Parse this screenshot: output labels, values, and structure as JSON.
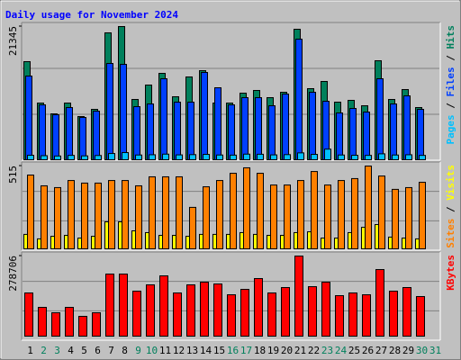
{
  "title": "Daily usage for November 2024",
  "legend_separator": "/",
  "chart_data": [
    {
      "type": "bar",
      "ylim": [
        0,
        21345
      ],
      "yticks": [
        21345
      ],
      "series": [
        {
          "name": "Hits",
          "color": "#00805c",
          "values": [
            15720,
            9085,
            7355,
            9085,
            6922,
            8076,
            20334,
            21345,
            9662,
            11970,
            13845,
            10095,
            13268,
            14277,
            9085,
            9085,
            10672,
            11105,
            9951,
            10817,
            20912,
            11393,
            12547,
            9230,
            9518,
            8653,
            15864,
            9662,
            11249,
            8365,
            null
          ]
        },
        {
          "name": "Files",
          "color": "#0040ff",
          "values": [
            13412,
            8797,
            7211,
            8365,
            6778,
            7788,
            15431,
            15287,
            8509,
            8941,
            12979,
            9230,
            9230,
            13989,
            11537,
            8797,
            9951,
            9951,
            8653,
            10528,
            19325,
            10816,
            9374,
            7499,
            8220,
            7643,
            12979,
            8941,
            10239,
            8076,
            null
          ]
        },
        {
          "name": "Pages",
          "color": "#00c0ff",
          "values": [
            720,
            650,
            600,
            700,
            620,
            680,
            1000,
            1150,
            760,
            800,
            900,
            780,
            820,
            860,
            760,
            740,
            900,
            880,
            780,
            820,
            1100,
            860,
            1700,
            760,
            720,
            700,
            950,
            760,
            800,
            700,
            null
          ]
        }
      ]
    },
    {
      "type": "bar",
      "ylim": [
        0,
        515
      ],
      "yticks": [
        515
      ],
      "series": [
        {
          "name": "Visits",
          "color": "#ffff00",
          "values": [
            90,
            62,
            78,
            84,
            67,
            78,
            168,
            168,
            112,
            101,
            84,
            84,
            78,
            90,
            90,
            90,
            101,
            90,
            84,
            84,
            101,
            106,
            67,
            67,
            101,
            134,
            151,
            73,
            67,
            62,
            null
          ]
        },
        {
          "name": "Sites",
          "color": "#ff8000",
          "values": [
            459,
            392,
            381,
            425,
            409,
            409,
            425,
            425,
            392,
            448,
            448,
            448,
            258,
            386,
            425,
            470,
            504,
            470,
            397,
            397,
            425,
            481,
            397,
            425,
            437,
            515,
            453,
            370,
            381,
            414,
            null
          ]
        }
      ]
    },
    {
      "type": "bar",
      "ylim": [
        0,
        278706
      ],
      "yticks": [
        278706
      ],
      "categories": [
        "1",
        "2",
        "3",
        "4",
        "5",
        "6",
        "7",
        "8",
        "9",
        "10",
        "11",
        "12",
        "13",
        "14",
        "15",
        "16",
        "17",
        "18",
        "19",
        "20",
        "21",
        "22",
        "23",
        "24",
        "25",
        "26",
        "27",
        "28",
        "29",
        "30",
        "31"
      ],
      "x_label_colors": [
        "#000000",
        "#00805c",
        "#00805c",
        "#000000",
        "#000000",
        "#000000",
        "#000000",
        "#000000",
        "#00805c",
        "#00805c",
        "#000000",
        "#000000",
        "#000000",
        "#000000",
        "#000000",
        "#00805c",
        "#00805c",
        "#000000",
        "#000000",
        "#000000",
        "#000000",
        "#000000",
        "#00805c",
        "#00805c",
        "#000000",
        "#000000",
        "#000000",
        "#000000",
        "#000000",
        "#00805c",
        "#00805c"
      ],
      "series": [
        {
          "name": "KBytes",
          "color": "#ff0000",
          "values": [
            150300,
            100200,
            81400,
            100200,
            68900,
            81400,
            216000,
            216000,
            156600,
            178500,
            209800,
            150300,
            178500,
            187900,
            181600,
            144000,
            162800,
            200400,
            150300,
            169100,
            278706,
            172200,
            187900,
            140900,
            150300,
            144000,
            231700,
            156600,
            169100,
            137800,
            null
          ]
        }
      ]
    }
  ]
}
